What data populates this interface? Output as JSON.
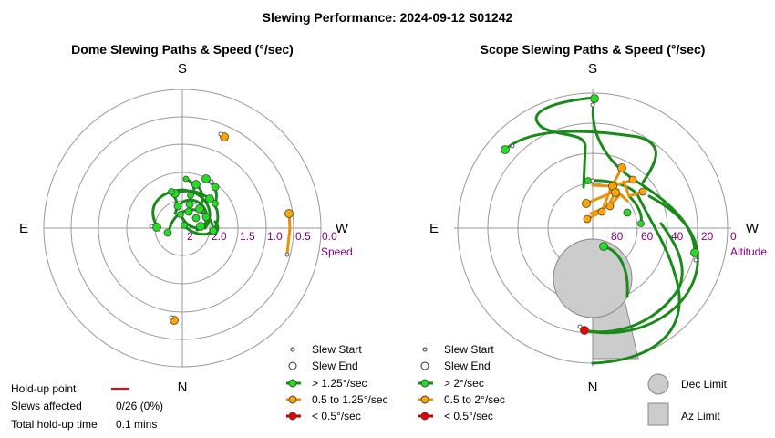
{
  "title": "Slewing Performance: 2024-09-12 S01242",
  "colors": {
    "fast": "#22aa22",
    "fast_fill": "#22dd22",
    "path_green": "#1a8a1a",
    "medium": "#ff9900",
    "medium_fill": "#ffa500",
    "slow": "#dd0000",
    "slow_fill": "#ee0000",
    "holdup": "#ff0000",
    "ring": "#999999",
    "axis_label": "#800080",
    "limit_fill": "#cccccc",
    "limit_edge": "#888888"
  },
  "info": {
    "holdup_label": "Hold-up point",
    "slews_affected_label": "Slews affected",
    "slews_affected_value": "0/26 (0%)",
    "total_holdup_label": "Total hold-up time",
    "total_holdup_value": "0.1 mins"
  },
  "chart_data": [
    {
      "type": "polar",
      "title": "Dome Slewing Paths & Speed (°/sec)",
      "directions": {
        "top": "S",
        "bottom": "N",
        "left": "E",
        "right": "W"
      },
      "radial_label": "Speed",
      "radial_ticks": [
        "2",
        "2.0",
        "1.5",
        "1.0",
        "0.5",
        "0.0"
      ],
      "radial_range": [
        2.5,
        0.0
      ],
      "legend": [
        {
          "marker": "start",
          "label": "Slew Start"
        },
        {
          "marker": "end",
          "label": "Slew End"
        },
        {
          "marker": "fast",
          "label": "> 1.25°/sec"
        },
        {
          "marker": "medium",
          "label": "0.5 to 1.25°/sec"
        },
        {
          "marker": "slow",
          "label": "< 0.5°/sec"
        }
      ]
    },
    {
      "type": "polar",
      "title": "Scope Slewing Paths & Speed (°/sec)",
      "directions": {
        "top": "S",
        "bottom": "N",
        "left": "E",
        "right": "W"
      },
      "radial_label": "Altitude",
      "radial_ticks": [
        "80",
        "60",
        "40",
        "20",
        "0"
      ],
      "radial_range": [
        90,
        0
      ],
      "legend": [
        {
          "marker": "start",
          "label": "Slew Start"
        },
        {
          "marker": "end",
          "label": "Slew End"
        },
        {
          "marker": "fast",
          "label": "> 2°/sec"
        },
        {
          "marker": "medium",
          "label": "0.5 to 2°/sec"
        },
        {
          "marker": "slow",
          "label": "< 0.5°/sec"
        }
      ],
      "limits_legend": [
        {
          "marker": "dec-limit",
          "label": "Dec Limit"
        },
        {
          "marker": "az-limit",
          "label": "Az Limit"
        }
      ]
    }
  ]
}
